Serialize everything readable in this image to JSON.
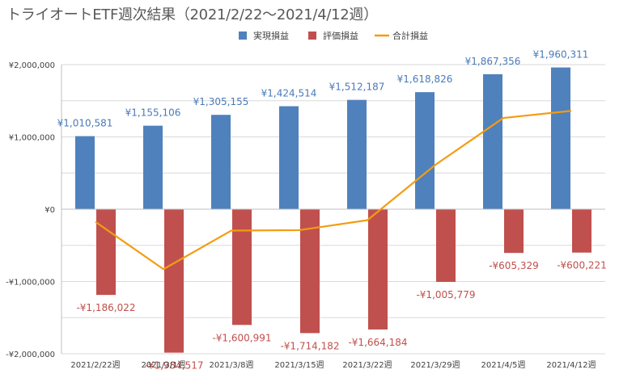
{
  "chart_data": {
    "type": "bar",
    "title": "トライオートETF週次結果（2021/2/22〜2021/4/12週）",
    "categories": [
      "2021/2/22週",
      "2021/3/1週",
      "2021/3/8週",
      "2021/3/15週",
      "2021/3/22週",
      "2021/3/29週",
      "2021/4/5週",
      "2021/4/12週"
    ],
    "series": [
      {
        "name": "実現損益",
        "type": "bar",
        "color": "#4f81bd",
        "values": [
          1010581,
          1155106,
          1305155,
          1424514,
          1512187,
          1618826,
          1867356,
          1960311
        ],
        "labels": [
          "¥1,010,581",
          "¥1,155,106",
          "¥1,305,155",
          "¥1,424,514",
          "¥1,512,187",
          "¥1,618,826",
          "¥1,867,356",
          "¥1,960,311"
        ]
      },
      {
        "name": "評価損益",
        "type": "bar",
        "color": "#c0504d",
        "values": [
          -1186022,
          -1984517,
          -1600991,
          -1714182,
          -1664184,
          -1005779,
          -605329,
          -600221
        ],
        "labels": [
          "-¥1,186,022",
          "-¥1,984,517",
          "-¥1,600,991",
          "-¥1,714,182",
          "-¥1,664,184",
          "-¥1,005,779",
          "-¥605,329",
          "-¥600,221"
        ]
      },
      {
        "name": "合計損益",
        "type": "line",
        "color": "#f39c12",
        "values": [
          -175441,
          -829411,
          -295836,
          -289668,
          -151997,
          613047,
          1262027,
          1360090
        ]
      }
    ],
    "y_ticks": [
      {
        "value": 2000000,
        "label": "¥2,000,000"
      },
      {
        "value": 1000000,
        "label": "¥1,000,000"
      },
      {
        "value": 0,
        "label": "¥0"
      },
      {
        "value": -1000000,
        "label": "-¥1,000,000"
      },
      {
        "value": -2000000,
        "label": "-¥2,000,000"
      }
    ],
    "ylim": [
      -2000000,
      2000000
    ],
    "grid": true,
    "legend_position": "top-center"
  }
}
